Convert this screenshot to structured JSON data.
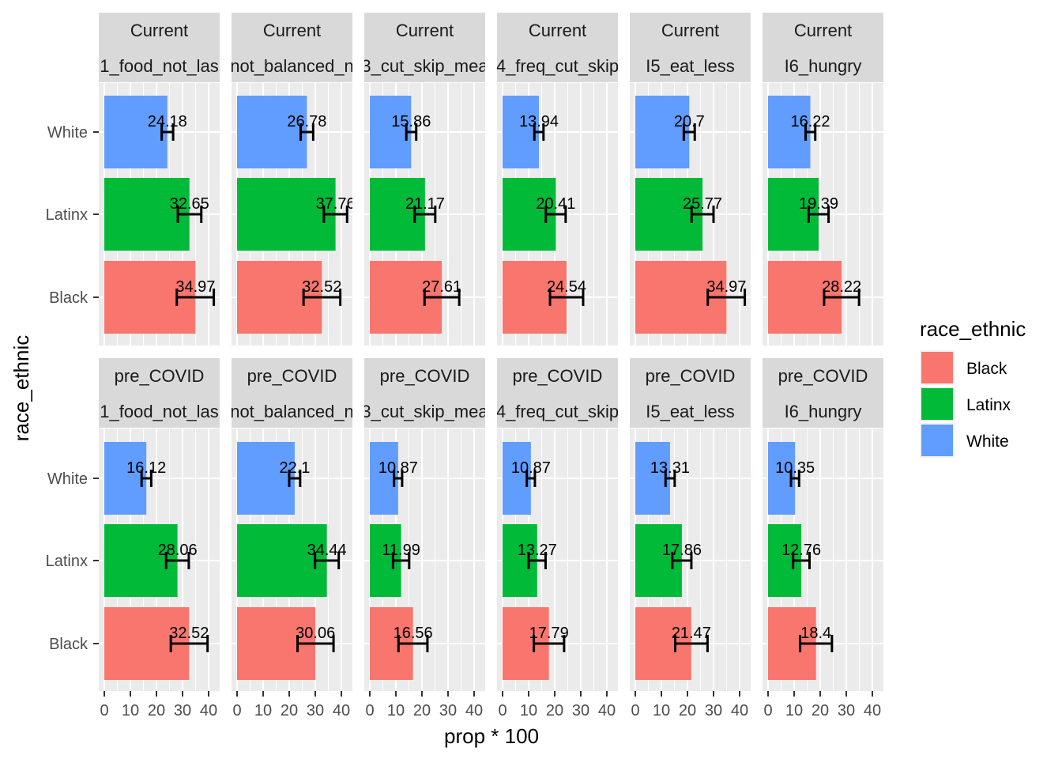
{
  "chart_data": {
    "type": "bar",
    "orientation": "horizontal",
    "xlabel": "prop * 100",
    "ylabel": "race_ethnic",
    "xlim": [
      0,
      45
    ],
    "x_ticks": [
      0,
      10,
      20,
      30,
      40
    ],
    "grid": true,
    "legend": {
      "title": "race_ethnic",
      "position": "right",
      "entries": [
        {
          "label": "Black",
          "color": "#F8766D"
        },
        {
          "label": "Latinx",
          "color": "#00BA38"
        },
        {
          "label": "White",
          "color": "#619CFF"
        }
      ]
    },
    "categories": [
      "White",
      "Latinx",
      "Black"
    ],
    "row_facets": [
      "Current",
      "pre_COVID"
    ],
    "col_facets": [
      "1_food_not_las",
      "not_balanced_n",
      "3_cut_skip_mea",
      "4_freq_cut_skip",
      "I5_eat_less",
      "I6_hungry"
    ],
    "panels": [
      {
        "time": "Current",
        "item": "1_food_not_las",
        "values": [
          {
            "group": "White",
            "value": 24.18,
            "label": "24.18",
            "lo": 22.0,
            "hi": 26.4
          },
          {
            "group": "Latinx",
            "value": 32.65,
            "label": "32.65",
            "lo": 28.2,
            "hi": 37.2
          },
          {
            "group": "Black",
            "value": 34.97,
            "label": "34.97",
            "lo": 27.8,
            "hi": 42.0
          }
        ]
      },
      {
        "time": "Current",
        "item": "not_balanced_n",
        "values": [
          {
            "group": "White",
            "value": 26.78,
            "label": "26.78",
            "lo": 24.4,
            "hi": 29.2
          },
          {
            "group": "Latinx",
            "value": 37.76,
            "label": "37.76",
            "lo": 33.3,
            "hi": 42.2
          },
          {
            "group": "Black",
            "value": 32.52,
            "label": "32.52",
            "lo": 25.5,
            "hi": 39.6
          }
        ]
      },
      {
        "time": "Current",
        "item": "3_cut_skip_mea",
        "values": [
          {
            "group": "White",
            "value": 15.86,
            "label": "15.86",
            "lo": 14.0,
            "hi": 17.8
          },
          {
            "group": "Latinx",
            "value": 21.17,
            "label": "21.17",
            "lo": 17.2,
            "hi": 25.1
          },
          {
            "group": "Black",
            "value": 27.61,
            "label": "27.61",
            "lo": 21.0,
            "hi": 34.3
          }
        ]
      },
      {
        "time": "Current",
        "item": "4_freq_cut_skip",
        "values": [
          {
            "group": "White",
            "value": 13.94,
            "label": "13.94",
            "lo": 12.2,
            "hi": 15.7
          },
          {
            "group": "Latinx",
            "value": 20.41,
            "label": "20.41",
            "lo": 16.6,
            "hi": 24.2
          },
          {
            "group": "Black",
            "value": 24.54,
            "label": "24.54",
            "lo": 18.2,
            "hi": 30.9
          }
        ]
      },
      {
        "time": "Current",
        "item": "I5_eat_less",
        "values": [
          {
            "group": "White",
            "value": 20.7,
            "label": "20.7",
            "lo": 18.6,
            "hi": 22.8
          },
          {
            "group": "Latinx",
            "value": 25.77,
            "label": "25.77",
            "lo": 21.6,
            "hi": 30.0
          },
          {
            "group": "Black",
            "value": 34.97,
            "label": "34.97",
            "lo": 27.8,
            "hi": 42.0
          }
        ]
      },
      {
        "time": "Current",
        "item": "I6_hungry",
        "values": [
          {
            "group": "White",
            "value": 16.22,
            "label": "16.22",
            "lo": 14.4,
            "hi": 18.1
          },
          {
            "group": "Latinx",
            "value": 19.39,
            "label": "19.39",
            "lo": 15.6,
            "hi": 23.2
          },
          {
            "group": "Black",
            "value": 28.22,
            "label": "28.22",
            "lo": 21.5,
            "hi": 34.9
          }
        ]
      },
      {
        "time": "pre_COVID",
        "item": "1_food_not_las",
        "values": [
          {
            "group": "White",
            "value": 16.12,
            "label": "16.12",
            "lo": 14.3,
            "hi": 18.0
          },
          {
            "group": "Latinx",
            "value": 28.06,
            "label": "28.06",
            "lo": 23.7,
            "hi": 32.4
          },
          {
            "group": "Black",
            "value": 32.52,
            "label": "32.52",
            "lo": 25.5,
            "hi": 39.6
          }
        ]
      },
      {
        "time": "pre_COVID",
        "item": "not_balanced_n",
        "values": [
          {
            "group": "White",
            "value": 22.1,
            "label": "22.1",
            "lo": 20.0,
            "hi": 24.2
          },
          {
            "group": "Latinx",
            "value": 34.44,
            "label": "34.44",
            "lo": 29.9,
            "hi": 39.0
          },
          {
            "group": "Black",
            "value": 30.06,
            "label": "30.06",
            "lo": 23.2,
            "hi": 37.0
          }
        ]
      },
      {
        "time": "pre_COVID",
        "item": "3_cut_skip_mea",
        "values": [
          {
            "group": "White",
            "value": 10.87,
            "label": "10.87",
            "lo": 9.3,
            "hi": 12.4
          },
          {
            "group": "Latinx",
            "value": 11.99,
            "label": "11.99",
            "lo": 8.9,
            "hi": 15.1
          },
          {
            "group": "Black",
            "value": 16.56,
            "label": "16.56",
            "lo": 11.0,
            "hi": 22.1
          }
        ]
      },
      {
        "time": "pre_COVID",
        "item": "4_freq_cut_skip",
        "values": [
          {
            "group": "White",
            "value": 10.87,
            "label": "10.87",
            "lo": 9.3,
            "hi": 12.4
          },
          {
            "group": "Latinx",
            "value": 13.27,
            "label": "13.27",
            "lo": 10.0,
            "hi": 16.5
          },
          {
            "group": "Black",
            "value": 17.79,
            "label": "17.79",
            "lo": 12.0,
            "hi": 23.6
          }
        ]
      },
      {
        "time": "pre_COVID",
        "item": "I5_eat_less",
        "values": [
          {
            "group": "White",
            "value": 13.31,
            "label": "13.31",
            "lo": 11.6,
            "hi": 15.1
          },
          {
            "group": "Latinx",
            "value": 17.86,
            "label": "17.86",
            "lo": 14.2,
            "hi": 21.5
          },
          {
            "group": "Black",
            "value": 21.47,
            "label": "21.47",
            "lo": 15.3,
            "hi": 27.7
          }
        ]
      },
      {
        "time": "pre_COVID",
        "item": "I6_hungry",
        "values": [
          {
            "group": "White",
            "value": 10.35,
            "label": "10.35",
            "lo": 8.8,
            "hi": 11.9
          },
          {
            "group": "Latinx",
            "value": 12.76,
            "label": "12.76",
            "lo": 9.6,
            "hi": 15.9
          },
          {
            "group": "Black",
            "value": 18.4,
            "label": "18.4",
            "lo": 12.3,
            "hi": 24.5
          }
        ]
      }
    ]
  }
}
